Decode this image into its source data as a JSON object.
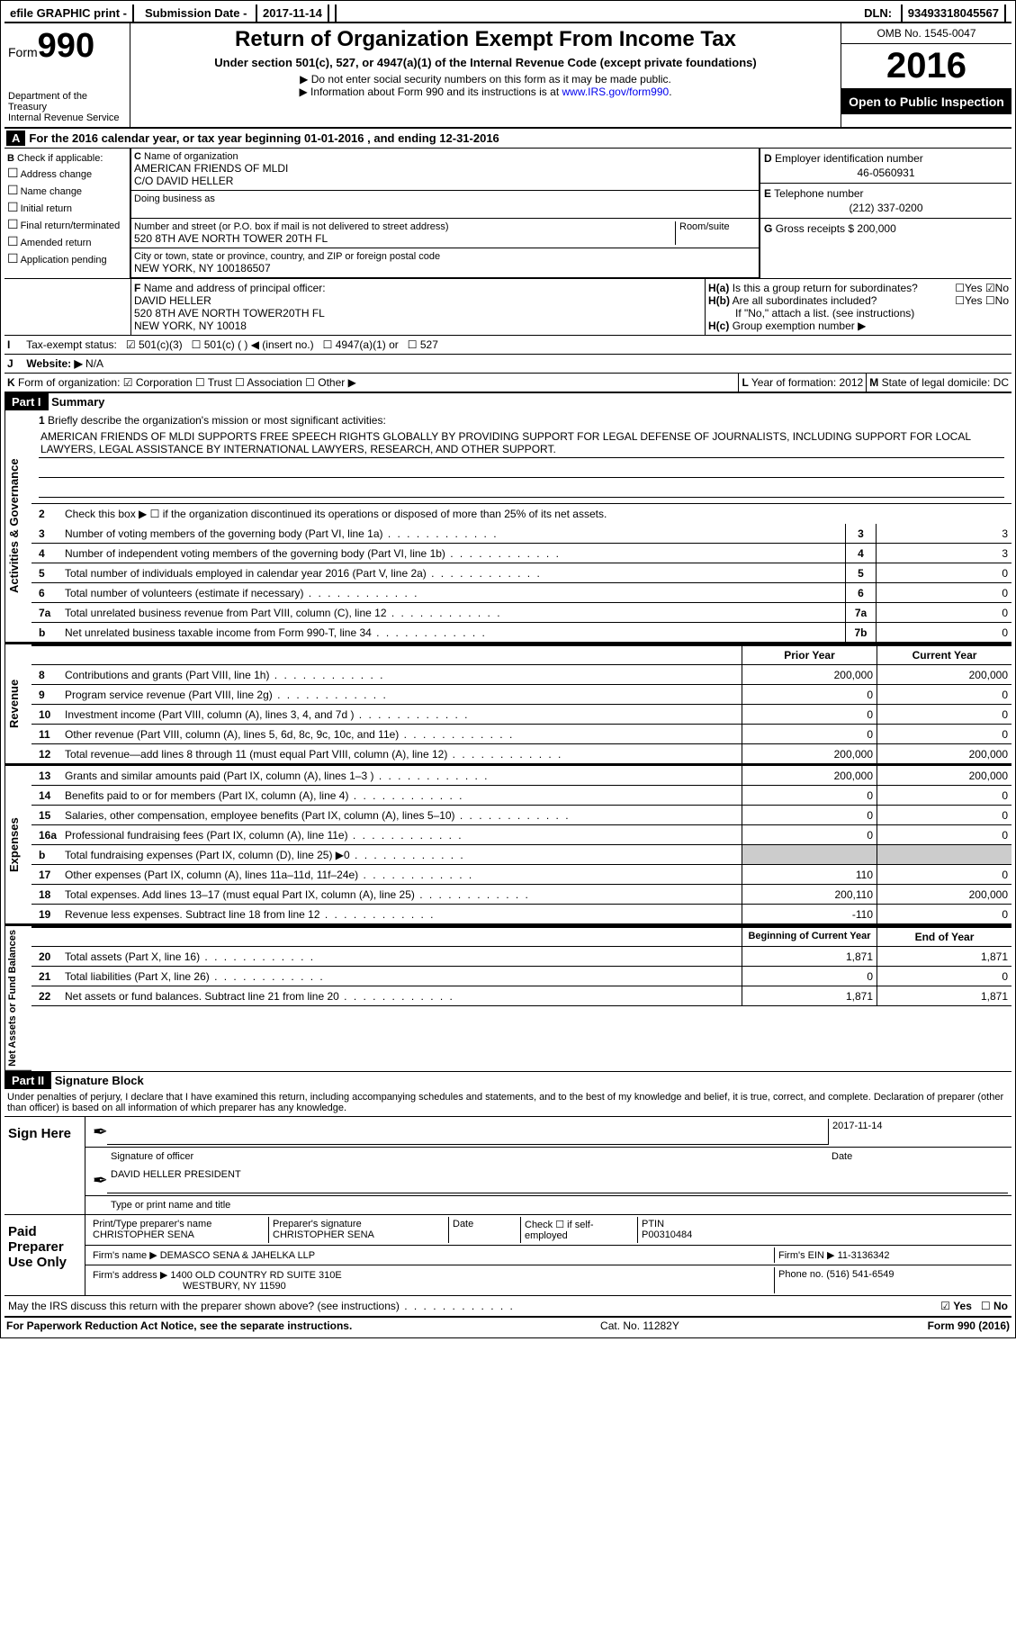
{
  "topbar": {
    "efile": "efile GRAPHIC print -",
    "submission_label": "Submission Date - ",
    "submission_date": "2017-11-14",
    "dln_label": "DLN: ",
    "dln": "93493318045567"
  },
  "header": {
    "form_label": "Form",
    "form_num": "990",
    "dept1": "Department of the Treasury",
    "dept2": "Internal Revenue Service",
    "title": "Return of Organization Exempt From Income Tax",
    "subtitle": "Under section 501(c), 527, or 4947(a)(1) of the Internal Revenue Code (except private foundations)",
    "note1": "▶ Do not enter social security numbers on this form as it may be made public.",
    "note2": "▶ Information about Form 990 and its instructions is at ",
    "link": "www.IRS.gov/form990",
    "omb": "OMB No. 1545-0047",
    "year": "2016",
    "inspect": "Open to Public Inspection"
  },
  "lineA": "For the 2016 calendar year, or tax year beginning 01-01-2016   , and ending 12-31-2016",
  "colB": {
    "label": "Check if applicable:",
    "items": [
      "Address change",
      "Name change",
      "Initial return",
      "Final return/terminated",
      "Amended return",
      "Application pending"
    ]
  },
  "colC": {
    "name_label": "Name of organization",
    "name1": "AMERICAN FRIENDS OF MLDI",
    "name2": "C/O DAVID HELLER",
    "dba_label": "Doing business as",
    "street_label": "Number and street (or P.O. box if mail is not delivered to street address)",
    "room_label": "Room/suite",
    "street": "520 8TH AVE NORTH TOWER 20TH FL",
    "city_label": "City or town, state or province, country, and ZIP or foreign postal code",
    "city": "NEW YORK, NY  100186507"
  },
  "colD": {
    "ein_label": "Employer identification number",
    "ein": "46-0560931",
    "phone_label": "Telephone number",
    "phone": "(212) 337-0200",
    "gross_label": "Gross receipts $ ",
    "gross": "200,000"
  },
  "rowF": {
    "label": "Name and address of principal officer:",
    "name": "DAVID HELLER",
    "addr1": "520 8TH AVE NORTH TOWER20TH FL",
    "addr2": "NEW YORK, NY  10018"
  },
  "rowH": {
    "ha": "Is this a group return for subordinates?",
    "hb": "Are all subordinates included?",
    "hb_note": "If \"No,\" attach a list. (see instructions)",
    "hc": "Group exemption number ▶",
    "yes": "Yes",
    "no": "No"
  },
  "rowI": {
    "label": "Tax-exempt status:",
    "opts": [
      "501(c)(3)",
      "501(c) (   ) ◀ (insert no.)",
      "4947(a)(1) or",
      "527"
    ]
  },
  "rowJ": {
    "label": "Website: ▶",
    "val": "N/A"
  },
  "rowK": {
    "label": "Form of organization:",
    "opts": [
      "Corporation",
      "Trust",
      "Association",
      "Other ▶"
    ],
    "L_label": "Year of formation: ",
    "L_val": "2012",
    "M_label": "State of legal domicile: ",
    "M_val": "DC"
  },
  "part1": {
    "title": "Part I",
    "subtitle": "Summary",
    "side1": "Activities & Governance",
    "side2": "Revenue",
    "side3": "Expenses",
    "side4": "Net Assets or Fund Balances",
    "l1_label": "Briefly describe the organization's mission or most significant activities:",
    "l1_text": "AMERICAN FRIENDS OF MLDI SUPPORTS FREE SPEECH RIGHTS GLOBALLY BY PROVIDING SUPPORT FOR LEGAL DEFENSE OF JOURNALISTS, INCLUDING SUPPORT FOR LOCAL LAWYERS, LEGAL ASSISTANCE BY INTERNATIONAL LAWYERS, RESEARCH, AND OTHER SUPPORT.",
    "l2": "Check this box ▶ ☐  if the organization discontinued its operations or disposed of more than 25% of its net assets.",
    "lines_gov": [
      {
        "n": "3",
        "d": "Number of voting members of the governing body (Part VI, line 1a)",
        "box": "3",
        "v": "3"
      },
      {
        "n": "4",
        "d": "Number of independent voting members of the governing body (Part VI, line 1b)",
        "box": "4",
        "v": "3"
      },
      {
        "n": "5",
        "d": "Total number of individuals employed in calendar year 2016 (Part V, line 2a)",
        "box": "5",
        "v": "0"
      },
      {
        "n": "6",
        "d": "Total number of volunteers (estimate if necessary)",
        "box": "6",
        "v": "0"
      },
      {
        "n": "7a",
        "d": "Total unrelated business revenue from Part VIII, column (C), line 12",
        "box": "7a",
        "v": "0"
      },
      {
        "n": "b",
        "d": "Net unrelated business taxable income from Form 990-T, line 34",
        "box": "7b",
        "v": "0"
      }
    ],
    "hdr_prior": "Prior Year",
    "hdr_current": "Current Year",
    "lines_rev": [
      {
        "n": "8",
        "d": "Contributions and grants (Part VIII, line 1h)",
        "p": "200,000",
        "c": "200,000"
      },
      {
        "n": "9",
        "d": "Program service revenue (Part VIII, line 2g)",
        "p": "0",
        "c": "0"
      },
      {
        "n": "10",
        "d": "Investment income (Part VIII, column (A), lines 3, 4, and 7d )",
        "p": "0",
        "c": "0"
      },
      {
        "n": "11",
        "d": "Other revenue (Part VIII, column (A), lines 5, 6d, 8c, 9c, 10c, and 11e)",
        "p": "0",
        "c": "0"
      },
      {
        "n": "12",
        "d": "Total revenue—add lines 8 through 11 (must equal Part VIII, column (A), line 12)",
        "p": "200,000",
        "c": "200,000"
      }
    ],
    "lines_exp": [
      {
        "n": "13",
        "d": "Grants and similar amounts paid (Part IX, column (A), lines 1–3 )",
        "p": "200,000",
        "c": "200,000"
      },
      {
        "n": "14",
        "d": "Benefits paid to or for members (Part IX, column (A), line 4)",
        "p": "0",
        "c": "0"
      },
      {
        "n": "15",
        "d": "Salaries, other compensation, employee benefits (Part IX, column (A), lines 5–10)",
        "p": "0",
        "c": "0"
      },
      {
        "n": "16a",
        "d": "Professional fundraising fees (Part IX, column (A), line 11e)",
        "p": "0",
        "c": "0"
      },
      {
        "n": "b",
        "d": "Total fundraising expenses (Part IX, column (D), line 25) ▶0",
        "p": "",
        "c": "",
        "shaded": true
      },
      {
        "n": "17",
        "d": "Other expenses (Part IX, column (A), lines 11a–11d, 11f–24e)",
        "p": "110",
        "c": "0"
      },
      {
        "n": "18",
        "d": "Total expenses. Add lines 13–17 (must equal Part IX, column (A), line 25)",
        "p": "200,110",
        "c": "200,000"
      },
      {
        "n": "19",
        "d": "Revenue less expenses. Subtract line 18 from line 12",
        "p": "-110",
        "c": "0"
      }
    ],
    "hdr_begin": "Beginning of Current Year",
    "hdr_end": "End of Year",
    "lines_net": [
      {
        "n": "20",
        "d": "Total assets (Part X, line 16)",
        "p": "1,871",
        "c": "1,871"
      },
      {
        "n": "21",
        "d": "Total liabilities (Part X, line 26)",
        "p": "0",
        "c": "0"
      },
      {
        "n": "22",
        "d": "Net assets or fund balances. Subtract line 21 from line 20",
        "p": "1,871",
        "c": "1,871"
      }
    ]
  },
  "part2": {
    "title": "Part II",
    "subtitle": "Signature Block",
    "perjury": "Under penalties of perjury, I declare that I have examined this return, including accompanying schedules and statements, and to the best of my knowledge and belief, it is true, correct, and complete. Declaration of preparer (other than officer) is based on all information of which preparer has any knowledge.",
    "sign_here": "Sign Here",
    "sig_officer": "Signature of officer",
    "date": "Date",
    "date_val": "2017-11-14",
    "officer_name": "DAVID HELLER PRESIDENT",
    "type_name": "Type or print name and title",
    "paid_prep": "Paid Preparer Use Only",
    "prep_name_label": "Print/Type preparer's name",
    "prep_name": "CHRISTOPHER SENA",
    "prep_sig_label": "Preparer's signature",
    "prep_sig": "CHRISTOPHER SENA",
    "check_self": "Check ☐ if self-employed",
    "ptin_label": "PTIN",
    "ptin": "P00310484",
    "firm_name_label": "Firm's name      ▶ ",
    "firm_name": "DEMASCO SENA & JAHELKA LLP",
    "firm_ein_label": "Firm's EIN ▶ ",
    "firm_ein": "11-3136342",
    "firm_addr_label": "Firm's address ▶ ",
    "firm_addr1": "1400 OLD COUNTRY RD SUITE 310E",
    "firm_addr2": "WESTBURY, NY  11590",
    "phone_label": "Phone no. ",
    "phone": "(516) 541-6549"
  },
  "discuss": "May the IRS discuss this return with the preparer shown above? (see instructions)",
  "footer": {
    "left": "For Paperwork Reduction Act Notice, see the separate instructions.",
    "mid": "Cat. No. 11282Y",
    "right": "Form 990 (2016)"
  }
}
